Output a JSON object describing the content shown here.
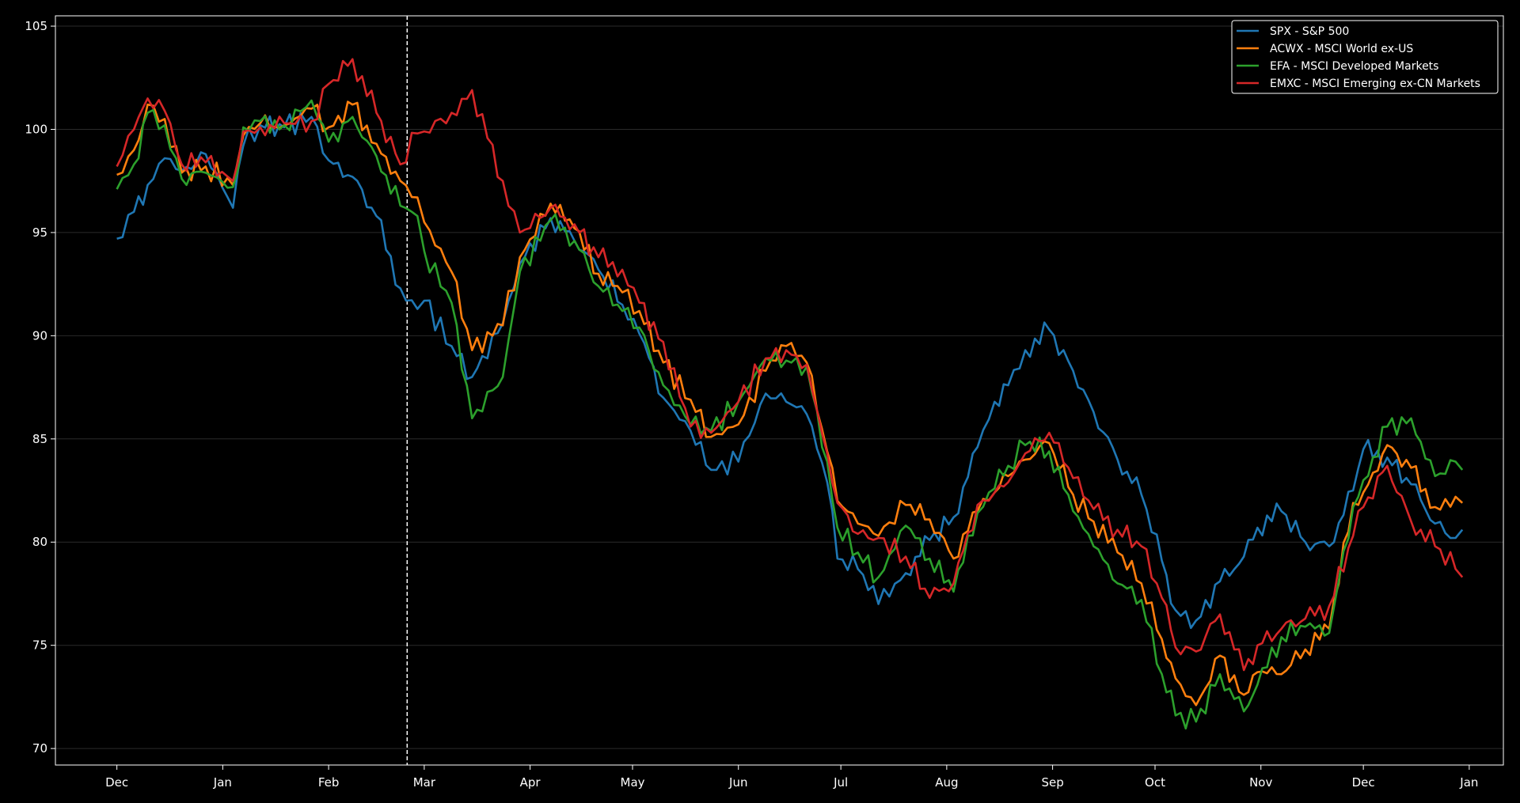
{
  "chart_data": {
    "type": "line",
    "title": "",
    "xlabel": "",
    "ylabel": "",
    "x_ticks": [
      "Dec",
      "Jan",
      "Feb",
      "Mar",
      "Apr",
      "May",
      "Jun",
      "Jul",
      "Aug",
      "Sep",
      "Oct",
      "Nov",
      "Dec",
      "Jan"
    ],
    "x_tick_dates": [
      "2021-12-01",
      "2022-01-01",
      "2022-02-01",
      "2022-03-01",
      "2022-04-01",
      "2022-05-01",
      "2022-06-01",
      "2022-07-01",
      "2022-08-01",
      "2022-09-01",
      "2022-10-01",
      "2022-11-01",
      "2022-12-01",
      "2023-01-01"
    ],
    "xlim": [
      "2021-11-13",
      "2023-01-11"
    ],
    "ylim": [
      69.2,
      105.5
    ],
    "y_ticks": [
      70,
      75,
      80,
      85,
      90,
      95,
      100,
      105
    ],
    "grid": "horizontal",
    "vline": "2022-02-24",
    "legend_position": "top-right",
    "series": [
      {
        "name": "SPX - S&P 500",
        "color": "#1f77b4",
        "points": [
          [
            "2021-12-01",
            94.7
          ],
          [
            "2021-12-06",
            96.0
          ],
          [
            "2021-12-10",
            97.3
          ],
          [
            "2021-12-15",
            98.6
          ],
          [
            "2021-12-20",
            98.0
          ],
          [
            "2021-12-27",
            98.8
          ],
          [
            "2022-01-04",
            96.2
          ],
          [
            "2022-01-07",
            99.2
          ],
          [
            "2022-01-12",
            100.2
          ],
          [
            "2022-01-19",
            100.1
          ],
          [
            "2022-01-27",
            100.6
          ],
          [
            "2022-02-01",
            98.5
          ],
          [
            "2022-02-08",
            97.7
          ],
          [
            "2022-02-15",
            95.8
          ],
          [
            "2022-02-22",
            92.3
          ],
          [
            "2022-02-27",
            91.3
          ],
          [
            "2022-03-01",
            91.7
          ],
          [
            "2022-03-09",
            89.5
          ],
          [
            "2022-03-15",
            88.0
          ],
          [
            "2022-03-24",
            90.6
          ],
          [
            "2022-03-29",
            93.5
          ],
          [
            "2022-04-07",
            95.7
          ],
          [
            "2022-04-14",
            94.6
          ],
          [
            "2022-04-21",
            93.2
          ],
          [
            "2022-04-28",
            91.5
          ],
          [
            "2022-05-03",
            90.1
          ],
          [
            "2022-05-10",
            87.0
          ],
          [
            "2022-05-18",
            85.4
          ],
          [
            "2022-05-24",
            83.5
          ],
          [
            "2022-06-01",
            83.9
          ],
          [
            "2022-06-09",
            87.2
          ],
          [
            "2022-06-15",
            86.8
          ],
          [
            "2022-06-21",
            86.2
          ],
          [
            "2022-06-27",
            82.9
          ],
          [
            "2022-06-30",
            79.2
          ],
          [
            "2022-07-06",
            78.7
          ],
          [
            "2022-07-12",
            77.0
          ],
          [
            "2022-07-20",
            78.5
          ],
          [
            "2022-07-27",
            80.1
          ],
          [
            "2022-08-03",
            81.2
          ],
          [
            "2022-08-10",
            84.6
          ],
          [
            "2022-08-15",
            86.8
          ],
          [
            "2022-08-19",
            87.6
          ],
          [
            "2022-08-24",
            89.3
          ],
          [
            "2022-08-31",
            90.3
          ],
          [
            "2022-09-07",
            88.3
          ],
          [
            "2022-09-13",
            86.3
          ],
          [
            "2022-09-20",
            84.0
          ],
          [
            "2022-09-27",
            82.3
          ],
          [
            "2022-10-03",
            79.1
          ],
          [
            "2022-10-07",
            76.7
          ],
          [
            "2022-10-13",
            76.2
          ],
          [
            "2022-10-20",
            78.1
          ],
          [
            "2022-10-27",
            79.3
          ],
          [
            "2022-10-31",
            80.7
          ],
          [
            "2022-11-07",
            81.5
          ],
          [
            "2022-11-14",
            80.0
          ],
          [
            "2022-11-21",
            79.8
          ],
          [
            "2022-11-28",
            82.5
          ],
          [
            "2022-12-01",
            84.5
          ],
          [
            "2022-12-08",
            84.1
          ],
          [
            "2022-12-15",
            82.8
          ],
          [
            "2022-12-22",
            80.9
          ],
          [
            "2022-12-28",
            80.2
          ],
          [
            "2022-12-30",
            80.6
          ]
        ]
      },
      {
        "name": "ACWX - MSCI World ex-US",
        "color": "#ff7f0e",
        "points": [
          [
            "2021-12-01",
            97.8
          ],
          [
            "2021-12-06",
            99.0
          ],
          [
            "2021-12-10",
            101.2
          ],
          [
            "2021-12-15",
            100.5
          ],
          [
            "2021-12-20",
            97.9
          ],
          [
            "2021-12-27",
            98.2
          ],
          [
            "2022-01-04",
            97.3
          ],
          [
            "2022-01-07",
            99.7
          ],
          [
            "2022-01-12",
            100.3
          ],
          [
            "2022-01-19",
            100.2
          ],
          [
            "2022-01-27",
            101.0
          ],
          [
            "2022-02-01",
            100.1
          ],
          [
            "2022-02-08",
            101.2
          ],
          [
            "2022-02-15",
            99.3
          ],
          [
            "2022-02-22",
            97.5
          ],
          [
            "2022-02-27",
            96.7
          ],
          [
            "2022-03-01",
            95.5
          ],
          [
            "2022-03-09",
            93.1
          ],
          [
            "2022-03-15",
            89.3
          ],
          [
            "2022-03-24",
            90.5
          ],
          [
            "2022-03-29",
            93.8
          ],
          [
            "2022-04-07",
            96.4
          ],
          [
            "2022-04-14",
            95.2
          ],
          [
            "2022-04-21",
            93.0
          ],
          [
            "2022-04-28",
            92.1
          ],
          [
            "2022-05-03",
            91.2
          ],
          [
            "2022-05-10",
            88.7
          ],
          [
            "2022-05-18",
            86.9
          ],
          [
            "2022-05-24",
            85.1
          ],
          [
            "2022-06-01",
            85.7
          ],
          [
            "2022-06-09",
            88.3
          ],
          [
            "2022-06-15",
            89.5
          ],
          [
            "2022-06-21",
            88.7
          ],
          [
            "2022-06-27",
            84.4
          ],
          [
            "2022-06-30",
            82.0
          ],
          [
            "2022-07-06",
            80.9
          ],
          [
            "2022-07-12",
            80.3
          ],
          [
            "2022-07-20",
            81.8
          ],
          [
            "2022-07-27",
            81.1
          ],
          [
            "2022-08-03",
            79.2
          ],
          [
            "2022-08-10",
            81.5
          ],
          [
            "2022-08-15",
            82.4
          ],
          [
            "2022-08-19",
            83.2
          ],
          [
            "2022-08-24",
            84.0
          ],
          [
            "2022-08-31",
            84.8
          ],
          [
            "2022-09-07",
            82.3
          ],
          [
            "2022-09-13",
            81.0
          ],
          [
            "2022-09-20",
            79.5
          ],
          [
            "2022-09-27",
            78.0
          ],
          [
            "2022-10-03",
            75.3
          ],
          [
            "2022-10-07",
            73.4
          ],
          [
            "2022-10-13",
            72.1
          ],
          [
            "2022-10-20",
            74.5
          ],
          [
            "2022-10-27",
            72.6
          ],
          [
            "2022-10-31",
            73.7
          ],
          [
            "2022-11-07",
            73.6
          ],
          [
            "2022-11-14",
            74.8
          ],
          [
            "2022-11-21",
            75.8
          ],
          [
            "2022-11-28",
            81.9
          ],
          [
            "2022-12-01",
            82.4
          ],
          [
            "2022-12-08",
            84.7
          ],
          [
            "2022-12-15",
            83.6
          ],
          [
            "2022-12-22",
            81.7
          ],
          [
            "2022-12-28",
            82.2
          ],
          [
            "2022-12-30",
            81.9
          ]
        ]
      },
      {
        "name": "EFA - MSCI Developed Markets",
        "color": "#2ca02c",
        "points": [
          [
            "2021-12-01",
            97.1
          ],
          [
            "2021-12-06",
            98.3
          ],
          [
            "2021-12-10",
            100.8
          ],
          [
            "2021-12-15",
            100.2
          ],
          [
            "2021-12-20",
            97.6
          ],
          [
            "2021-12-27",
            97.9
          ],
          [
            "2022-01-04",
            97.2
          ],
          [
            "2022-01-07",
            100.1
          ],
          [
            "2022-01-12",
            100.4
          ],
          [
            "2022-01-19",
            100.2
          ],
          [
            "2022-01-27",
            101.4
          ],
          [
            "2022-02-01",
            99.4
          ],
          [
            "2022-02-08",
            100.6
          ],
          [
            "2022-02-15",
            98.7
          ],
          [
            "2022-02-22",
            96.3
          ],
          [
            "2022-02-27",
            95.8
          ],
          [
            "2022-03-01",
            94.1
          ],
          [
            "2022-03-09",
            91.6
          ],
          [
            "2022-03-15",
            86.0
          ],
          [
            "2022-03-24",
            88.0
          ],
          [
            "2022-03-29",
            93.1
          ],
          [
            "2022-04-07",
            95.6
          ],
          [
            "2022-04-14",
            94.6
          ],
          [
            "2022-04-21",
            92.4
          ],
          [
            "2022-04-28",
            91.2
          ],
          [
            "2022-05-03",
            90.4
          ],
          [
            "2022-05-10",
            87.6
          ],
          [
            "2022-05-18",
            85.7
          ],
          [
            "2022-05-24",
            85.4
          ],
          [
            "2022-06-01",
            86.8
          ],
          [
            "2022-06-09",
            88.9
          ],
          [
            "2022-06-15",
            88.8
          ],
          [
            "2022-06-21",
            88.5
          ],
          [
            "2022-06-27",
            83.9
          ],
          [
            "2022-06-30",
            80.7
          ],
          [
            "2022-07-06",
            79.5
          ],
          [
            "2022-07-12",
            78.3
          ],
          [
            "2022-07-20",
            80.8
          ],
          [
            "2022-07-27",
            79.2
          ],
          [
            "2022-08-03",
            77.6
          ],
          [
            "2022-08-10",
            81.4
          ],
          [
            "2022-08-15",
            82.6
          ],
          [
            "2022-08-19",
            83.7
          ],
          [
            "2022-08-24",
            84.7
          ],
          [
            "2022-08-31",
            84.4
          ],
          [
            "2022-09-07",
            81.5
          ],
          [
            "2022-09-13",
            79.8
          ],
          [
            "2022-09-20",
            78.0
          ],
          [
            "2022-09-27",
            77.2
          ],
          [
            "2022-10-03",
            73.6
          ],
          [
            "2022-10-07",
            71.6
          ],
          [
            "2022-10-13",
            71.3
          ],
          [
            "2022-10-20",
            73.6
          ],
          [
            "2022-10-27",
            71.8
          ],
          [
            "2022-10-31",
            73.1
          ],
          [
            "2022-11-07",
            75.4
          ],
          [
            "2022-11-14",
            75.9
          ],
          [
            "2022-11-21",
            75.6
          ],
          [
            "2022-11-28",
            81.7
          ],
          [
            "2022-12-01",
            83.0
          ],
          [
            "2022-12-08",
            85.6
          ],
          [
            "2022-12-15",
            86.0
          ],
          [
            "2022-12-22",
            83.2
          ],
          [
            "2022-12-28",
            83.9
          ],
          [
            "2022-12-30",
            83.5
          ]
        ]
      },
      {
        "name": "EMXC - MSCI Emerging ex-CN Markets",
        "color": "#d62728",
        "points": [
          [
            "2021-12-01",
            98.2
          ],
          [
            "2021-12-06",
            100.0
          ],
          [
            "2021-12-10",
            101.5
          ],
          [
            "2021-12-15",
            100.9
          ],
          [
            "2021-12-20",
            98.3
          ],
          [
            "2021-12-27",
            98.4
          ],
          [
            "2022-01-04",
            97.5
          ],
          [
            "2022-01-07",
            99.9
          ],
          [
            "2022-01-12",
            100.1
          ],
          [
            "2022-01-19",
            100.3
          ],
          [
            "2022-01-27",
            100.4
          ],
          [
            "2022-02-01",
            102.2
          ],
          [
            "2022-02-08",
            103.4
          ],
          [
            "2022-02-15",
            100.8
          ],
          [
            "2022-02-22",
            98.3
          ],
          [
            "2022-02-27",
            99.8
          ],
          [
            "2022-03-01",
            99.9
          ],
          [
            "2022-03-09",
            100.8
          ],
          [
            "2022-03-15",
            101.9
          ],
          [
            "2022-03-24",
            97.5
          ],
          [
            "2022-03-29",
            95.0
          ],
          [
            "2022-04-07",
            96.2
          ],
          [
            "2022-04-14",
            95.4
          ],
          [
            "2022-04-21",
            93.8
          ],
          [
            "2022-04-28",
            93.2
          ],
          [
            "2022-05-03",
            91.6
          ],
          [
            "2022-05-10",
            89.7
          ],
          [
            "2022-05-18",
            85.6
          ],
          [
            "2022-05-24",
            85.3
          ],
          [
            "2022-06-01",
            86.8
          ],
          [
            "2022-06-09",
            88.9
          ],
          [
            "2022-06-15",
            89.3
          ],
          [
            "2022-06-21",
            88.6
          ],
          [
            "2022-06-27",
            84.3
          ],
          [
            "2022-06-30",
            81.9
          ],
          [
            "2022-07-06",
            80.4
          ],
          [
            "2022-07-12",
            80.2
          ],
          [
            "2022-07-20",
            79.3
          ],
          [
            "2022-07-27",
            77.3
          ],
          [
            "2022-08-03",
            78.0
          ],
          [
            "2022-08-10",
            81.8
          ],
          [
            "2022-08-15",
            82.4
          ],
          [
            "2022-08-19",
            82.9
          ],
          [
            "2022-08-24",
            84.3
          ],
          [
            "2022-08-31",
            85.3
          ],
          [
            "2022-09-07",
            83.1
          ],
          [
            "2022-09-13",
            81.6
          ],
          [
            "2022-09-20",
            80.6
          ],
          [
            "2022-09-27",
            79.8
          ],
          [
            "2022-10-03",
            77.3
          ],
          [
            "2022-10-07",
            74.9
          ],
          [
            "2022-10-13",
            74.7
          ],
          [
            "2022-10-20",
            76.5
          ],
          [
            "2022-10-27",
            73.8
          ],
          [
            "2022-10-31",
            75.0
          ],
          [
            "2022-11-07",
            75.8
          ],
          [
            "2022-11-14",
            76.3
          ],
          [
            "2022-11-21",
            76.9
          ],
          [
            "2022-11-28",
            80.3
          ],
          [
            "2022-12-01",
            81.7
          ],
          [
            "2022-12-08",
            83.7
          ],
          [
            "2022-12-15",
            81.0
          ],
          [
            "2022-12-22",
            79.8
          ],
          [
            "2022-12-28",
            78.7
          ],
          [
            "2022-12-30",
            78.3
          ]
        ]
      }
    ]
  }
}
